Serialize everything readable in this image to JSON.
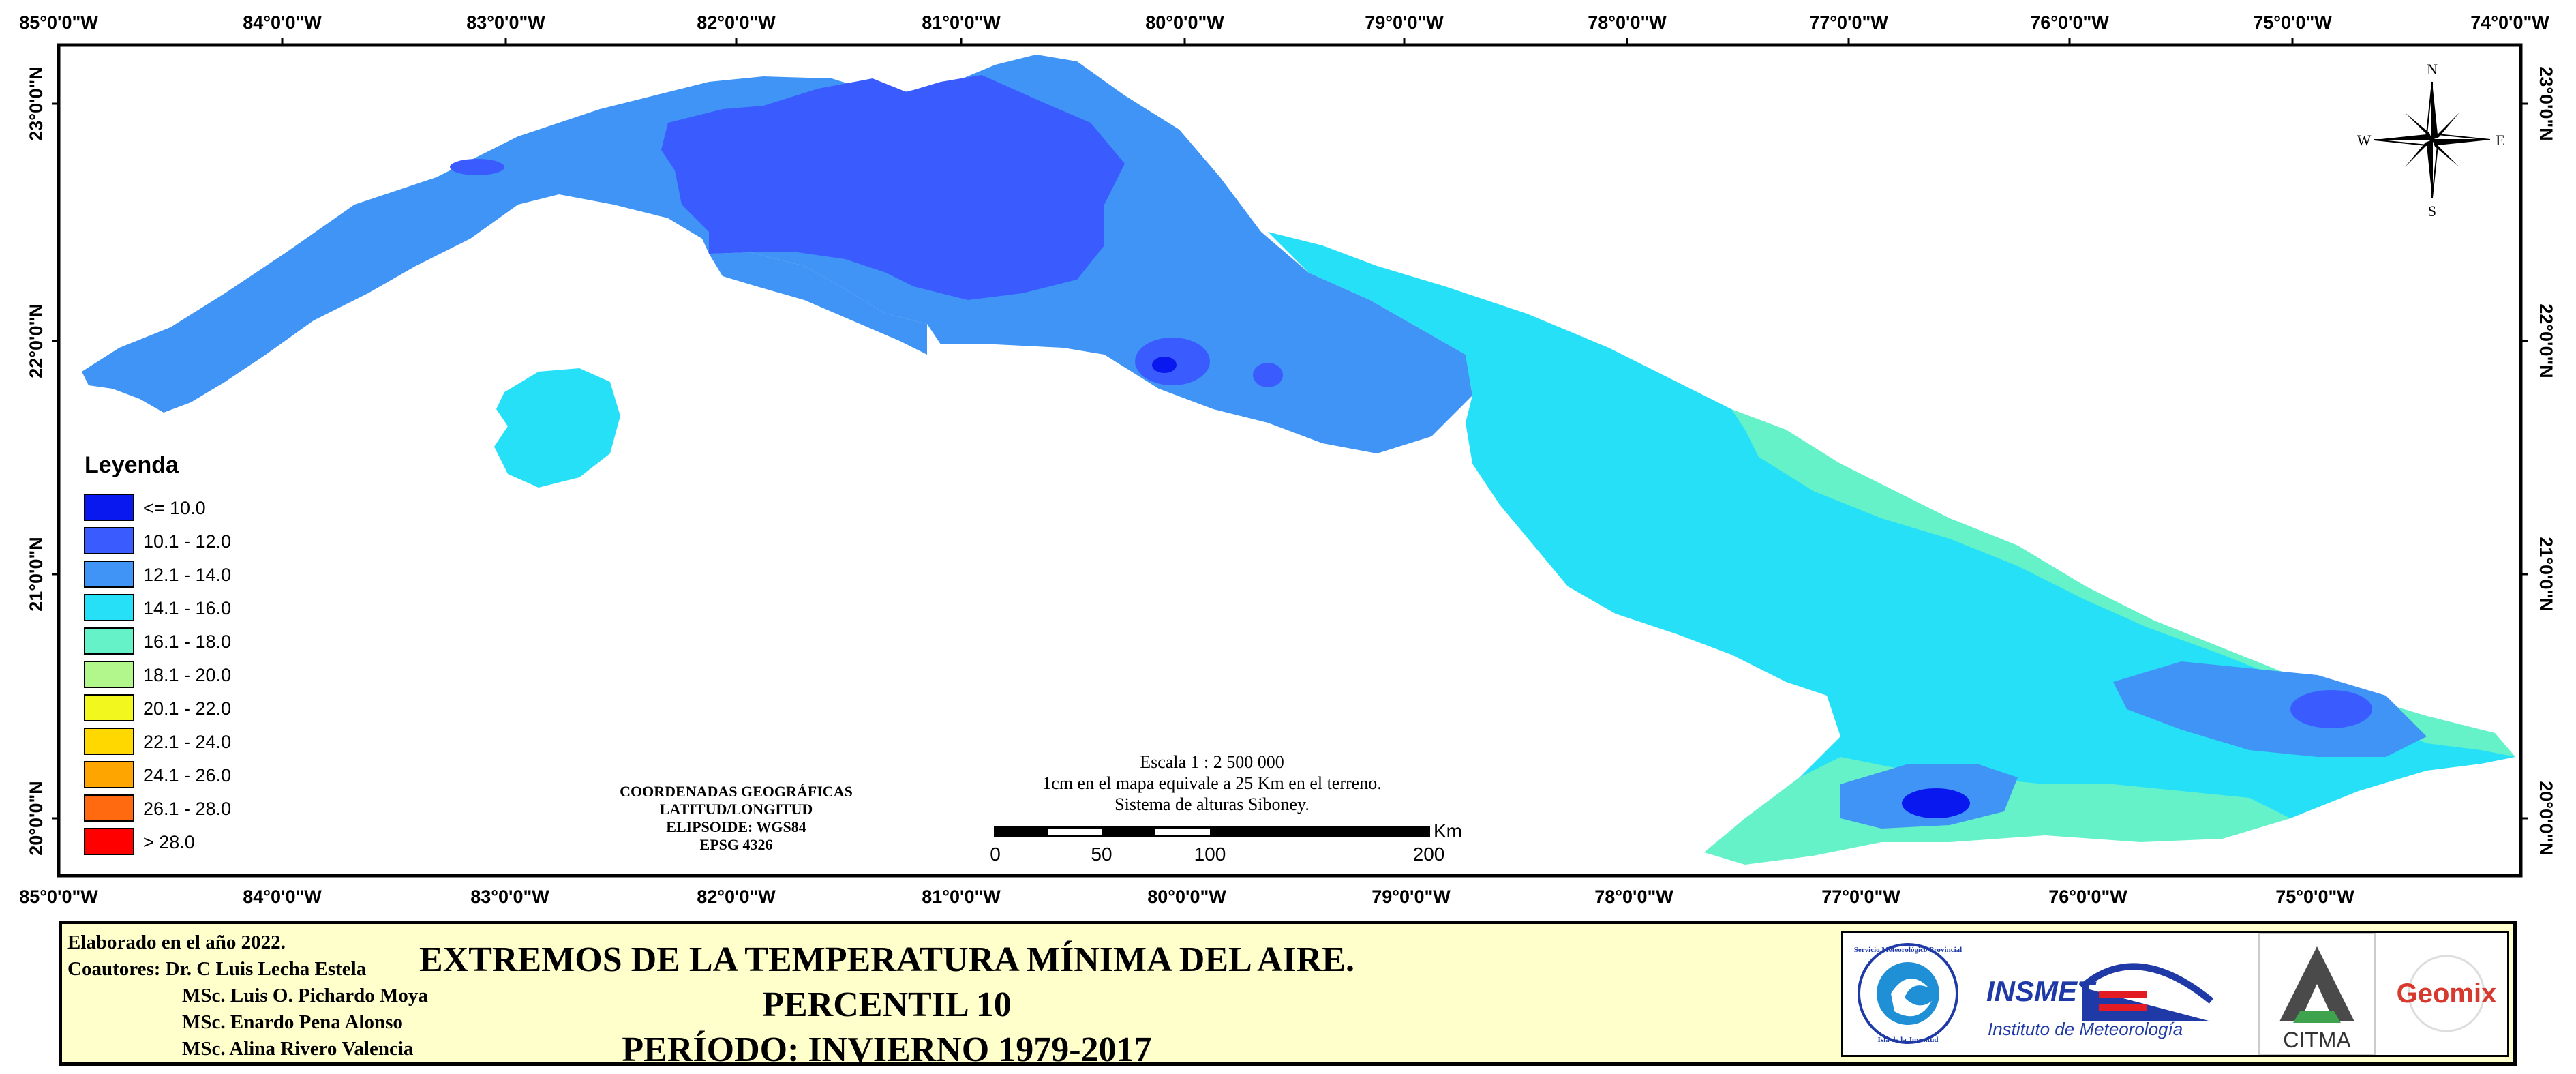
{
  "axes": {
    "top": [
      "85°0'0\"W",
      "84°0'0\"W",
      "83°0'0\"W",
      "82°0'0\"W",
      "81°0'0\"W",
      "80°0'0\"W",
      "79°0'0\"W",
      "78°0'0\"W",
      "77°0'0\"W",
      "76°0'0\"W",
      "75°0'0\"W",
      "74°0'0\"W"
    ],
    "bottom": [
      "85°0'0\"W",
      "84°0'0\"W",
      "83°0'0\"W",
      "82°0'0\"W",
      "81°0'0\"W",
      "80°0'0\"W",
      "79°0'0\"W",
      "78°0'0\"W",
      "77°0'0\"W",
      "76°0'0\"W",
      "75°0'0\"W"
    ],
    "lat": [
      "23°0'0\"N",
      "22°0'0\"N",
      "21°0'0\"N",
      "20°0'0\"N"
    ]
  },
  "compass": {
    "n": "N",
    "s": "S",
    "e": "E",
    "w": "W"
  },
  "legend": {
    "title": "Leyenda",
    "items": [
      {
        "label": "<= 10.0",
        "color": "#0a18f0"
      },
      {
        "label": "10.1 - 12.0",
        "color": "#3a5cff"
      },
      {
        "label": "12.1 - 14.0",
        "color": "#3f94f5"
      },
      {
        "label": "14.1 - 16.0",
        "color": "#26e0f8"
      },
      {
        "label": "16.1 - 18.0",
        "color": "#66f2c8"
      },
      {
        "label": "18.1 - 20.0",
        "color": "#b2f78c"
      },
      {
        "label": "20.1 - 22.0",
        "color": "#f2f81e"
      },
      {
        "label": "22.1 - 24.0",
        "color": "#ffd800"
      },
      {
        "label": "24.1 - 26.0",
        "color": "#ffa500"
      },
      {
        "label": "26.1 - 28.0",
        "color": "#ff6a10"
      },
      {
        "label": "> 28.0",
        "color": "#ff0000"
      }
    ]
  },
  "coords": {
    "l1": "COORDENADAS GEOGRÁFICAS",
    "l2": "LATITUD/LONGITUD",
    "l3": "ELIPSOIDE: WGS84",
    "l4": "EPSG 4326"
  },
  "scale": {
    "l1": "Escala 1 : 2 500 000",
    "l2": "1cm en el mapa equivale a 25 Km en el terreno.",
    "l3": "Sistema de alturas Siboney.",
    "unit": "Km",
    "ticks": [
      "0",
      "50",
      "100",
      "200"
    ]
  },
  "footer": {
    "made": "Elaborado en el año 2022.",
    "coauthors_label": "Coautores:",
    "authors": [
      "Dr. C Luis Lecha Estela",
      "MSc. Luis O. Pichardo Moya",
      "MSc. Enardo Pena Alonso",
      "MSc. Alina Rivero Valencia"
    ],
    "title1": "EXTREMOS DE LA TEMPERATURA MÍNIMA DEL AIRE. PERCENTIL 10",
    "title2": "PERÍODO: INVIERNO 1979-2017"
  },
  "logos": {
    "ssm_top": "Servicio Meteorológico Provincial",
    "ssm_bottom": "Isla de la Juventud",
    "insmet": "INSMET",
    "insmet_sub": "Instituto de Meteorología",
    "citma": "CITMA",
    "geomix": "Geomix"
  },
  "colors": {
    "frame": "#000000",
    "sea": "#ffffff",
    "footer_bg": "#ffffcc",
    "accent_red": "#e31b23",
    "accent_blue": "#1f3aa6"
  }
}
